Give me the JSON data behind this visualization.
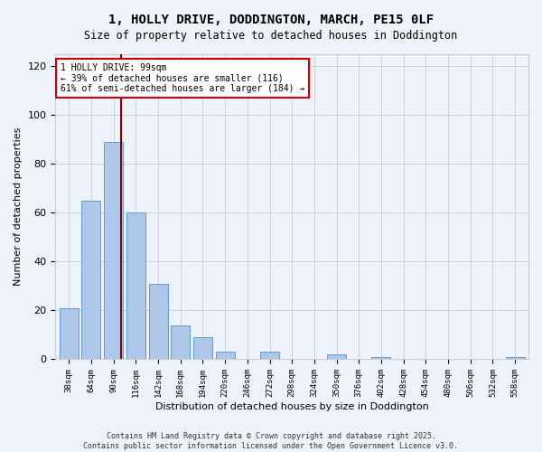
{
  "title1": "1, HOLLY DRIVE, DODDINGTON, MARCH, PE15 0LF",
  "title2": "Size of property relative to detached houses in Doddington",
  "xlabel": "Distribution of detached houses by size in Doddington",
  "ylabel": "Number of detached properties",
  "bar_labels": [
    "38sqm",
    "64sqm",
    "90sqm",
    "116sqm",
    "142sqm",
    "168sqm",
    "194sqm",
    "220sqm",
    "246sqm",
    "272sqm",
    "298sqm",
    "324sqm",
    "350sqm",
    "376sqm",
    "402sqm",
    "428sqm",
    "454sqm",
    "480sqm",
    "506sqm",
    "532sqm",
    "558sqm"
  ],
  "bar_values": [
    21,
    65,
    89,
    60,
    31,
    14,
    9,
    3,
    0,
    3,
    0,
    0,
    2,
    0,
    1,
    0,
    0,
    0,
    0,
    0,
    1
  ],
  "bar_color": "#aec6e8",
  "bar_edge_color": "#5a9fd4",
  "annotation_text_line1": "1 HOLLY DRIVE: 99sqm",
  "annotation_text_line2": "← 39% of detached houses are smaller (116)",
  "annotation_text_line3": "61% of semi-detached houses are larger (184) →",
  "vline_color": "#8b0000",
  "background_color": "#eef2fa",
  "ylim": [
    0,
    125
  ],
  "yticks": [
    0,
    20,
    40,
    60,
    80,
    100,
    120
  ],
  "footer": "Contains HM Land Registry data © Crown copyright and database right 2025.\nContains public sector information licensed under the Open Government Licence v3.0.",
  "annotation_box_facecolor": "#ffffff",
  "annotation_box_edgecolor": "#cc0000"
}
